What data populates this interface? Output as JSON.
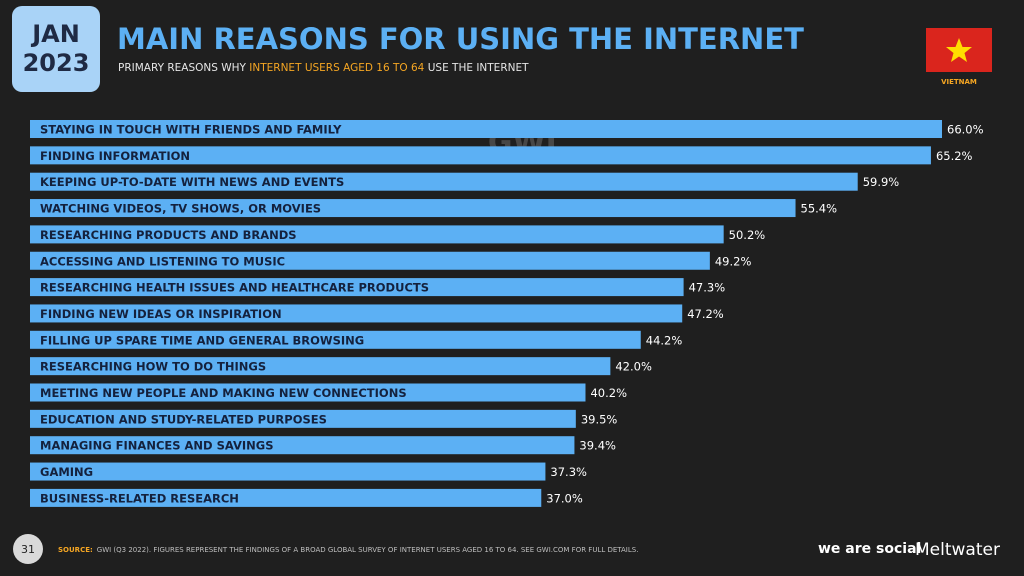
{
  "date": {
    "month": "JAN",
    "year": "2023"
  },
  "country": "VIETNAM",
  "watermark": "GWI.",
  "page_number": "31",
  "source": {
    "label": "SOURCE:",
    "text": "GWI (Q3 2022). FIGURES REPRESENT THE FINDINGS OF A BROAD GLOBAL SURVEY OF INTERNET USERS AGED 16 TO 64. SEE GWI.COM FOR FULL DETAILS."
  },
  "brands": [
    "we are social",
    "Meltwater"
  ],
  "chart_data": {
    "type": "bar",
    "title": "MAIN REASONS FOR USING THE INTERNET",
    "subtitle": [
      "PRIMARY REASONS WHY ",
      "INTERNET USERS AGED 16 TO 64",
      " USE THE INTERNET"
    ],
    "categories": [
      "STAYING IN TOUCH WITH FRIENDS AND FAMILY",
      "FINDING INFORMATION",
      "KEEPING UP-TO-DATE WITH NEWS AND EVENTS",
      "WATCHING VIDEOS, TV SHOWS, OR MOVIES",
      "RESEARCHING PRODUCTS AND BRANDS",
      "ACCESSING AND LISTENING TO MUSIC",
      "RESEARCHING HEALTH ISSUES AND HEALTHCARE PRODUCTS",
      "FINDING NEW IDEAS OR INSPIRATION",
      "FILLING UP SPARE TIME AND GENERAL BROWSING",
      "RESEARCHING HOW TO DO THINGS",
      "MEETING NEW PEOPLE AND MAKING NEW CONNECTIONS",
      "EDUCATION AND STUDY-RELATED PURPOSES",
      "MANAGING FINANCES AND SAVINGS",
      "GAMING",
      "BUSINESS-RELATED RESEARCH"
    ],
    "values": [
      66.0,
      65.2,
      59.9,
      55.4,
      50.2,
      49.2,
      47.3,
      47.2,
      44.2,
      42.0,
      40.2,
      39.5,
      39.4,
      37.3,
      37.0
    ],
    "value_labels": [
      "66.0%",
      "65.2%",
      "59.9%",
      "55.4%",
      "50.2%",
      "49.2%",
      "47.3%",
      "47.2%",
      "44.2%",
      "42.0%",
      "40.2%",
      "39.5%",
      "39.4%",
      "37.3%",
      "37.0%"
    ],
    "color": "#5cb0f4"
  }
}
